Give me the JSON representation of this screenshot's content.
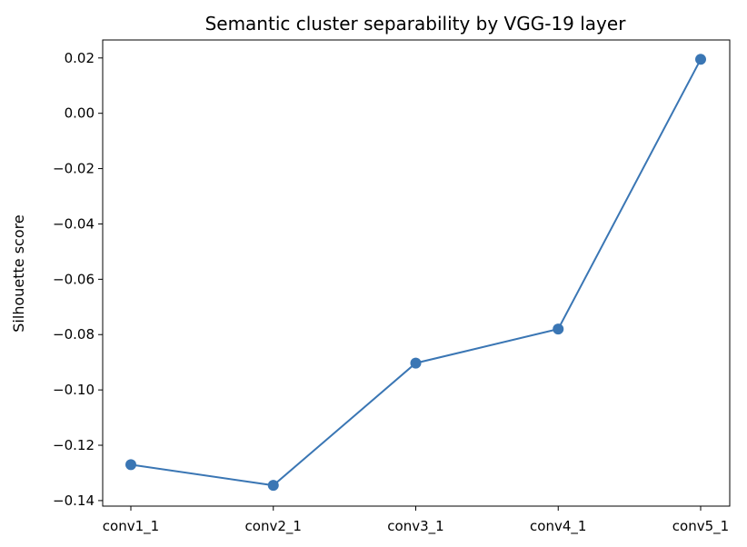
{
  "chart_data": {
    "type": "line",
    "title": "Semantic cluster separability by VGG-19 layer",
    "xlabel": "",
    "ylabel": "Silhouette score",
    "categories": [
      "conv1_1",
      "conv2_1",
      "conv3_1",
      "conv4_1",
      "conv5_1"
    ],
    "series": [
      {
        "values": [
          -0.127,
          -0.1345,
          -0.0903,
          -0.078,
          0.0195
        ]
      }
    ],
    "ylim": [
      -0.142,
      0.0265
    ],
    "yticks": [
      0.02,
      0.0,
      -0.02,
      -0.04,
      -0.06,
      -0.08,
      -0.1,
      -0.12,
      -0.14
    ],
    "ytick_labels": [
      "0.02",
      "0.00",
      "−0.02",
      "−0.04",
      "−0.06",
      "−0.08",
      "−0.10",
      "−0.12",
      "−0.14"
    ],
    "grid": false,
    "line_color": "#3a76b4"
  }
}
